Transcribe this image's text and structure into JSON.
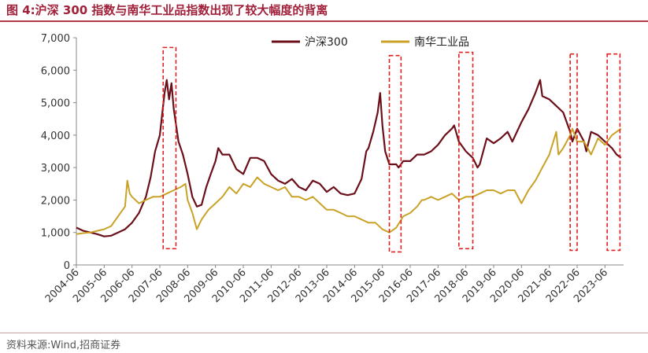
{
  "title": "图 4:沪深 300 指数与南华工业品指数出现了较大幅度的背离",
  "source": "资料来源:Wind,招商证券",
  "chart_data": {
    "type": "line",
    "title": "图 4:沪深 300 指数与南华工业品指数出现了较大幅度的背离",
    "xlabel": "",
    "ylabel": "",
    "ylim": [
      0,
      7000
    ],
    "yticks": [
      "0",
      "1,000",
      "2,000",
      "3,000",
      "4,000",
      "5,000",
      "6,000",
      "7,000"
    ],
    "ytick_values": [
      0,
      1000,
      2000,
      3000,
      4000,
      5000,
      6000,
      7000
    ],
    "xlim": [
      2004.5,
      2024.17
    ],
    "xticks": [
      "2004-06",
      "2005-06",
      "2006-06",
      "2007-06",
      "2008-06",
      "2009-06",
      "2010-06",
      "2011-06",
      "2012-06",
      "2013-06",
      "2014-06",
      "2015-06",
      "2016-06",
      "2017-06",
      "2018-06",
      "2019-06",
      "2020-06",
      "2021-06",
      "2022-06",
      "2023-06"
    ],
    "grid": false,
    "legend": "top-center",
    "series": [
      {
        "name": "沪深300",
        "color": "#6b0f1a",
        "x": [
          2004.5,
          2004.75,
          2005.0,
          2005.25,
          2005.5,
          2005.75,
          2006.0,
          2006.25,
          2006.5,
          2006.75,
          2007.0,
          2007.17,
          2007.33,
          2007.5,
          2007.67,
          2007.75,
          2007.83,
          2007.92,
          2008.0,
          2008.17,
          2008.33,
          2008.5,
          2008.67,
          2008.83,
          2009.0,
          2009.17,
          2009.33,
          2009.5,
          2009.6,
          2009.75,
          2010.0,
          2010.25,
          2010.5,
          2010.75,
          2011.0,
          2011.25,
          2011.5,
          2011.75,
          2012.0,
          2012.25,
          2012.5,
          2012.75,
          2013.0,
          2013.25,
          2013.5,
          2013.75,
          2014.0,
          2014.25,
          2014.5,
          2014.75,
          2014.92,
          2015.0,
          2015.17,
          2015.33,
          2015.42,
          2015.5,
          2015.6,
          2015.75,
          2016.0,
          2016.08,
          2016.25,
          2016.5,
          2016.75,
          2017.0,
          2017.25,
          2017.5,
          2017.75,
          2018.0,
          2018.08,
          2018.25,
          2018.5,
          2018.75,
          2018.92,
          2019.0,
          2019.25,
          2019.5,
          2019.75,
          2020.0,
          2020.17,
          2020.5,
          2020.75,
          2021.0,
          2021.17,
          2021.25,
          2021.5,
          2021.75,
          2022.0,
          2022.25,
          2022.33,
          2022.5,
          2022.75,
          2022.83,
          2023.0,
          2023.25,
          2023.5,
          2023.75,
          2023.92,
          2024.08
        ],
        "values": [
          1150,
          1050,
          1000,
          950,
          880,
          900,
          1000,
          1100,
          1300,
          1600,
          2100,
          2700,
          3500,
          4000,
          5300,
          5700,
          5100,
          5600,
          4800,
          3800,
          3400,
          2800,
          2100,
          1800,
          1850,
          2400,
          2800,
          3200,
          3600,
          3400,
          3400,
          2950,
          2800,
          3300,
          3300,
          3200,
          2800,
          2600,
          2500,
          2650,
          2400,
          2300,
          2600,
          2500,
          2250,
          2400,
          2200,
          2150,
          2200,
          2650,
          3500,
          3600,
          4100,
          4700,
          5300,
          4300,
          3500,
          3100,
          3100,
          3000,
          3200,
          3200,
          3400,
          3400,
          3500,
          3700,
          4000,
          4200,
          4300,
          3800,
          3500,
          3300,
          3000,
          3100,
          3900,
          3750,
          3900,
          4100,
          3800,
          4400,
          4800,
          5300,
          5700,
          5200,
          5100,
          4900,
          4700,
          4100,
          3800,
          4200,
          3800,
          3500,
          4100,
          4000,
          3800,
          3600,
          3400,
          3300
        ]
      },
      {
        "name": "南华工业品",
        "color": "#c9a227",
        "x": [
          2004.5,
          2004.75,
          2005.0,
          2005.25,
          2005.5,
          2005.75,
          2006.0,
          2006.25,
          2006.33,
          2006.42,
          2006.5,
          2006.75,
          2007.0,
          2007.25,
          2007.5,
          2007.75,
          2008.0,
          2008.25,
          2008.42,
          2008.5,
          2008.67,
          2008.83,
          2009.0,
          2009.25,
          2009.5,
          2009.75,
          2010.0,
          2010.25,
          2010.5,
          2010.75,
          2011.0,
          2011.25,
          2011.5,
          2011.75,
          2012.0,
          2012.25,
          2012.5,
          2012.75,
          2013.0,
          2013.25,
          2013.5,
          2013.75,
          2014.0,
          2014.25,
          2014.5,
          2014.75,
          2015.0,
          2015.25,
          2015.5,
          2015.75,
          2015.92,
          2016.0,
          2016.25,
          2016.5,
          2016.75,
          2016.92,
          2017.0,
          2017.25,
          2017.5,
          2017.75,
          2018.0,
          2018.25,
          2018.5,
          2018.75,
          2019.0,
          2019.25,
          2019.5,
          2019.75,
          2020.0,
          2020.25,
          2020.5,
          2020.75,
          2021.0,
          2021.25,
          2021.5,
          2021.75,
          2021.83,
          2022.0,
          2022.25,
          2022.33,
          2022.5,
          2022.75,
          2023.0,
          2023.25,
          2023.5,
          2023.75,
          2024.08
        ],
        "values": [
          950,
          980,
          1000,
          1050,
          1100,
          1200,
          1500,
          1800,
          2600,
          2200,
          2100,
          1900,
          2000,
          2100,
          2100,
          2200,
          2300,
          2400,
          2500,
          2000,
          1600,
          1100,
          1400,
          1700,
          1900,
          2100,
          2400,
          2200,
          2500,
          2400,
          2700,
          2500,
          2400,
          2300,
          2400,
          2100,
          2100,
          2000,
          2100,
          1900,
          1700,
          1700,
          1600,
          1500,
          1500,
          1400,
          1300,
          1300,
          1100,
          1000,
          1100,
          1150,
          1500,
          1600,
          1800,
          2000,
          2000,
          2100,
          2000,
          2100,
          2200,
          2000,
          2100,
          2100,
          2200,
          2300,
          2300,
          2200,
          2300,
          2300,
          1900,
          2300,
          2600,
          3000,
          3400,
          4100,
          3400,
          3600,
          4000,
          4200,
          3800,
          3800,
          3400,
          3900,
          3700,
          4000,
          4200
        ]
      }
    ],
    "annotations": [
      {
        "type": "dashed-box",
        "color": "#e02020",
        "x_start": 2007.62,
        "x_end": 2008.08,
        "y_start": 500,
        "y_end": 6700
      },
      {
        "type": "dashed-box",
        "color": "#e02020",
        "x_start": 2015.75,
        "x_end": 2016.17,
        "y_start": 400,
        "y_end": 6450
      },
      {
        "type": "dashed-box",
        "color": "#e02020",
        "x_start": 2018.25,
        "x_end": 2018.75,
        "y_start": 500,
        "y_end": 6550
      },
      {
        "type": "dashed-box",
        "color": "#e02020",
        "x_start": 2022.25,
        "x_end": 2022.5,
        "y_start": 450,
        "y_end": 6500
      },
      {
        "type": "dashed-box",
        "color": "#e02020",
        "x_start": 2023.58,
        "x_end": 2024.04,
        "y_start": 450,
        "y_end": 6500
      }
    ]
  }
}
